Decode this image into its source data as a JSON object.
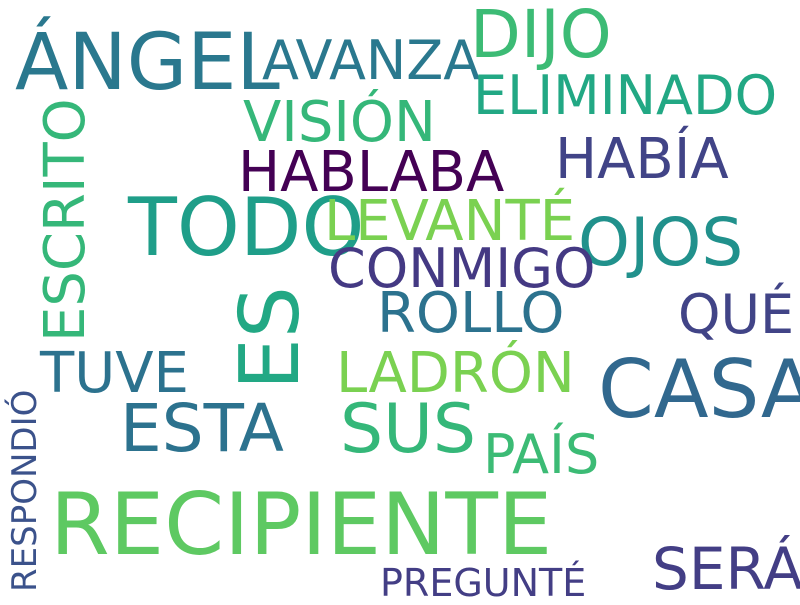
{
  "words": [
    {
      "text": "ÁNGEL",
      "color": "#2a788e"
    },
    {
      "text": "AVANZA",
      "color": "#2a788e"
    },
    {
      "text": "DIJO",
      "color": "#3cbb75"
    },
    {
      "text": "ELIMINADO",
      "color": "#22a884"
    },
    {
      "text": "VISIÓN",
      "color": "#35b779"
    },
    {
      "text": "HABLABA",
      "color": "#440154"
    },
    {
      "text": "HABÍA",
      "color": "#414487"
    },
    {
      "text": "TODO",
      "color": "#1f9e89"
    },
    {
      "text": "LEVANTÉ",
      "color": "#7ad151"
    },
    {
      "text": "ESCRITO",
      "color": "#35b779"
    },
    {
      "text": "OJOS",
      "color": "#21918c"
    },
    {
      "text": "CONMIGO",
      "color": "#443983"
    },
    {
      "text": "ES",
      "color": "#22a884"
    },
    {
      "text": "ROLLO",
      "color": "#2c728e"
    },
    {
      "text": "QUÉ",
      "color": "#414487"
    },
    {
      "text": "TUVE",
      "color": "#2c728e"
    },
    {
      "text": "LADRÓN",
      "color": "#7ad151"
    },
    {
      "text": "CASA",
      "color": "#31688e"
    },
    {
      "text": "ESTA",
      "color": "#2c728e"
    },
    {
      "text": "SUS",
      "color": "#35b779"
    },
    {
      "text": "PAÍS",
      "color": "#3cbb75"
    },
    {
      "text": "RESPONDIÓ",
      "color": "#3b528b"
    },
    {
      "text": "RECIPIENTE",
      "color": "#5ec962"
    },
    {
      "text": "SERÁ",
      "color": "#433e85"
    },
    {
      "text": "PREGUNTÉ",
      "color": "#433e85"
    }
  ]
}
